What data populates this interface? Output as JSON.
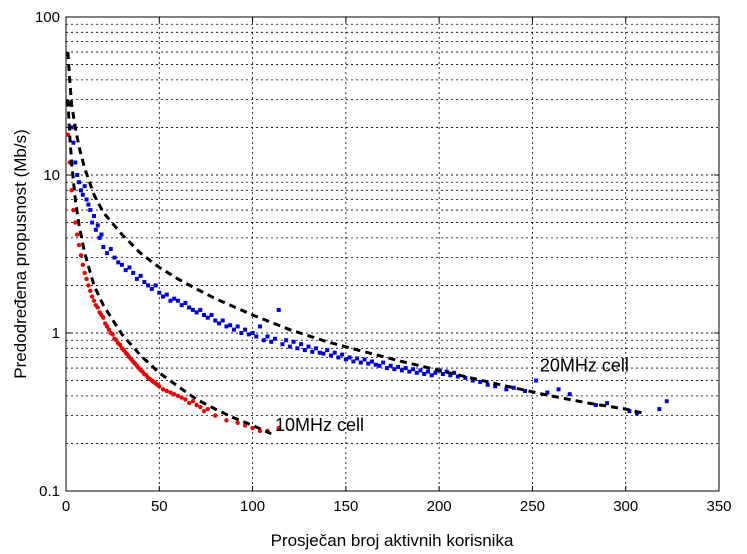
{
  "chart_data": {
    "type": "scatter",
    "xlabel": "Prosječan broj aktivnih korisnika",
    "ylabel": "Predodređena propusnost (Mb/s)",
    "xlim": [
      0,
      350
    ],
    "ylim": [
      0.1,
      100
    ],
    "yscale": "log",
    "grid": true,
    "x_ticks": [
      0,
      50,
      100,
      150,
      200,
      250,
      300,
      350
    ],
    "y_ticks": [
      0.1,
      1,
      10,
      100
    ],
    "x_tick_labels": [
      "0",
      "50",
      "100",
      "150",
      "200",
      "250",
      "300",
      "350"
    ],
    "y_tick_labels": [
      "0.1",
      "1",
      "10",
      "100"
    ],
    "annotations": [
      {
        "text": "20MHz cell",
        "x": 254,
        "y": 0.57
      },
      {
        "text": "10MHz cell",
        "x": 112,
        "y": 0.24
      }
    ],
    "series": [
      {
        "color": "#0000dd",
        "kind": "points",
        "x": [
          2,
          3,
          4,
          5,
          6,
          7,
          8,
          9,
          10,
          11,
          12,
          13,
          14,
          15,
          16,
          17,
          18,
          19,
          20,
          22,
          24,
          26,
          28,
          30,
          32,
          34,
          36,
          38,
          40,
          42,
          44,
          46,
          48,
          50,
          52,
          54,
          56,
          58,
          60,
          62,
          64,
          66,
          68,
          70,
          72,
          74,
          76,
          78,
          80,
          82,
          84,
          86,
          88,
          90,
          92,
          94,
          96,
          98,
          100,
          102,
          104,
          106,
          108,
          110,
          112,
          114,
          116,
          118,
          120,
          122,
          124,
          126,
          128,
          130,
          132,
          134,
          136,
          138,
          140,
          142,
          144,
          146,
          148,
          150,
          152,
          154,
          156,
          158,
          160,
          162,
          164,
          166,
          168,
          170,
          172,
          174,
          176,
          178,
          180,
          182,
          184,
          186,
          188,
          190,
          192,
          194,
          196,
          198,
          200,
          202,
          204,
          206,
          208,
          210,
          214,
          218,
          222,
          226,
          230,
          236,
          240,
          246,
          252,
          258,
          264,
          270,
          284,
          290,
          302,
          306,
          318,
          322
        ],
        "y": [
          28,
          20,
          16,
          12,
          10,
          9,
          8,
          7.5,
          8.5,
          7,
          6.5,
          6,
          5,
          5.5,
          4.5,
          4.8,
          4,
          4.2,
          3.5,
          3.2,
          3.4,
          3,
          2.8,
          2.7,
          2.5,
          2.6,
          2.4,
          2.2,
          2.3,
          2.1,
          2.0,
          1.9,
          2.0,
          1.8,
          1.7,
          1.75,
          1.6,
          1.65,
          1.6,
          1.5,
          1.55,
          1.45,
          1.4,
          1.35,
          1.4,
          1.3,
          1.25,
          1.3,
          1.2,
          1.15,
          1.2,
          1.1,
          1.12,
          1.05,
          1.1,
          1.0,
          1.05,
          0.98,
          1.0,
          0.95,
          1.1,
          0.9,
          0.95,
          0.88,
          0.92,
          1.4,
          0.85,
          0.9,
          0.82,
          0.88,
          0.8,
          0.85,
          0.78,
          0.82,
          0.76,
          0.8,
          0.75,
          0.74,
          0.78,
          0.72,
          0.75,
          0.7,
          0.73,
          0.68,
          0.7,
          0.66,
          0.69,
          0.65,
          0.68,
          0.64,
          0.66,
          0.63,
          0.62,
          0.65,
          0.6,
          0.62,
          0.59,
          0.61,
          0.58,
          0.6,
          0.57,
          0.59,
          0.56,
          0.58,
          0.55,
          0.57,
          0.54,
          0.56,
          0.58,
          0.55,
          0.57,
          0.54,
          0.56,
          0.53,
          0.52,
          0.5,
          0.49,
          0.47,
          0.46,
          0.44,
          0.45,
          0.43,
          0.5,
          0.42,
          0.44,
          0.41,
          0.35,
          0.36,
          0.32,
          0.31,
          0.33,
          0.37
        ]
      },
      {
        "color": "#ee0000",
        "kind": "points",
        "x": [
          1,
          2,
          3,
          4,
          5,
          6,
          7,
          8,
          9,
          10,
          11,
          12,
          13,
          14,
          15,
          16,
          17,
          18,
          19,
          20,
          21,
          22,
          23,
          24,
          25,
          26,
          27,
          28,
          29,
          30,
          31,
          32,
          33,
          34,
          35,
          36,
          37,
          38,
          39,
          40,
          41,
          42,
          43,
          44,
          45,
          46,
          47,
          48,
          49,
          50,
          52,
          54,
          56,
          58,
          60,
          62,
          64,
          66,
          68,
          70,
          72,
          74,
          76,
          80,
          86,
          92,
          96,
          100,
          104,
          108,
          114
        ],
        "y": [
          18,
          12,
          8,
          6,
          5,
          4.2,
          3.6,
          3.1,
          2.7,
          2.4,
          2.2,
          2.0,
          1.85,
          1.7,
          1.6,
          1.5,
          1.45,
          1.35,
          1.3,
          1.25,
          1.15,
          1.1,
          1.05,
          1.0,
          0.98,
          0.92,
          0.9,
          0.86,
          0.84,
          0.8,
          0.78,
          0.75,
          0.73,
          0.7,
          0.68,
          0.66,
          0.64,
          0.62,
          0.6,
          0.58,
          0.57,
          0.55,
          0.54,
          0.52,
          0.51,
          0.5,
          0.49,
          0.48,
          0.47,
          0.46,
          0.44,
          0.43,
          0.42,
          0.41,
          0.4,
          0.39,
          0.38,
          0.36,
          0.37,
          0.35,
          0.34,
          0.32,
          0.33,
          0.3,
          0.28,
          0.27,
          0.26,
          0.25,
          0.24,
          0.24,
          0.25
        ]
      },
      {
        "color": "#000000",
        "kind": "dashed-fit",
        "x": [
          1,
          2,
          3,
          5,
          7,
          10,
          15,
          20,
          30,
          40,
          50,
          60,
          70,
          80,
          100,
          120,
          140,
          160,
          180,
          200,
          220,
          240,
          260,
          280,
          300,
          310
        ],
        "y": [
          60,
          40,
          28,
          20,
          15,
          11,
          7.5,
          5.8,
          4.2,
          3.2,
          2.6,
          2.2,
          1.9,
          1.65,
          1.3,
          1.05,
          0.88,
          0.76,
          0.66,
          0.58,
          0.51,
          0.45,
          0.4,
          0.36,
          0.33,
          0.31
        ]
      },
      {
        "color": "#000000",
        "kind": "dashed-fit",
        "x": [
          1,
          2,
          3,
          5,
          7,
          10,
          15,
          20,
          30,
          40,
          50,
          60,
          70,
          80,
          90,
          100,
          110
        ],
        "y": [
          30,
          18,
          12,
          7,
          4.8,
          3.2,
          2.0,
          1.5,
          0.98,
          0.72,
          0.56,
          0.46,
          0.38,
          0.33,
          0.29,
          0.26,
          0.23
        ]
      }
    ]
  }
}
